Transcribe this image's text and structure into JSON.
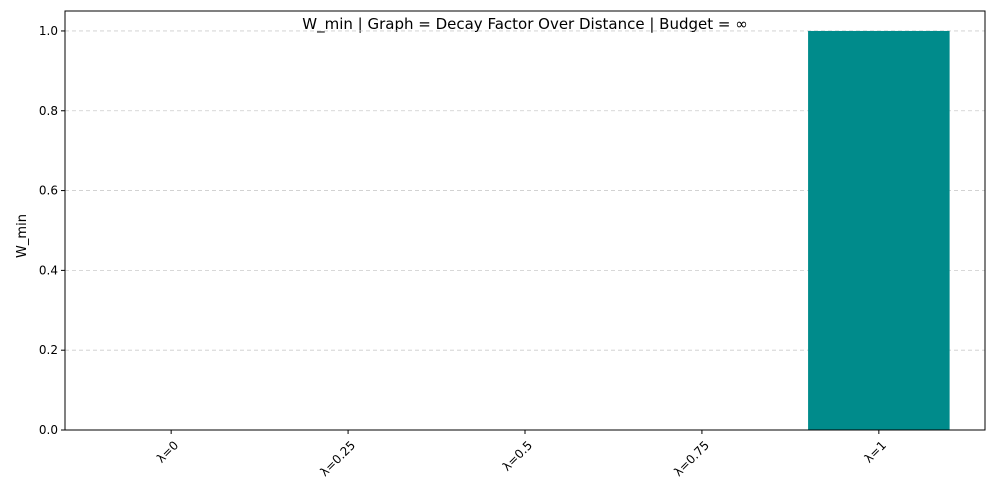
{
  "chart_data": {
    "type": "bar",
    "title": "W_min | Graph = Decay Factor Over Distance | Budget = ∞",
    "xlabel": "",
    "ylabel": "W_min",
    "categories": [
      "λ=0",
      "λ=0.25",
      "λ=0.5",
      "λ=0.75",
      "λ=1"
    ],
    "values": [
      0,
      0,
      0,
      0,
      1.0
    ],
    "ylim": [
      0,
      1.05
    ],
    "yticks": [
      "0.0",
      "0.2",
      "0.4",
      "0.6",
      "0.8",
      "1.0"
    ],
    "grid": "y-dashed",
    "bar_color": "#008b8b"
  }
}
